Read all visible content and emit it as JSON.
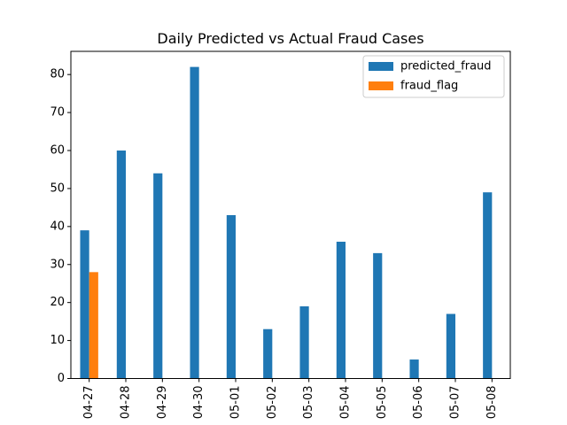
{
  "chart_data": {
    "type": "bar",
    "title": "Daily Predicted vs Actual Fraud Cases",
    "xlabel": "",
    "ylabel": "",
    "categories": [
      "04-27",
      "04-28",
      "04-29",
      "04-30",
      "05-01",
      "05-02",
      "05-03",
      "05-04",
      "05-05",
      "05-06",
      "05-07",
      "05-08"
    ],
    "series": [
      {
        "name": "predicted_fraud",
        "color": "#1f77b4",
        "values": [
          39,
          60,
          54,
          82,
          43,
          13,
          19,
          36,
          33,
          5,
          17,
          49
        ]
      },
      {
        "name": "fraud_flag",
        "color": "#ff7f0e",
        "values": [
          28,
          0,
          0,
          0,
          0,
          0,
          0,
          0,
          0,
          0,
          0,
          0
        ]
      }
    ],
    "ylim": [
      0,
      86.1
    ],
    "yticks": [
      0,
      10,
      20,
      30,
      40,
      50,
      60,
      70,
      80
    ],
    "grid": false,
    "legend_position": "top-right"
  }
}
